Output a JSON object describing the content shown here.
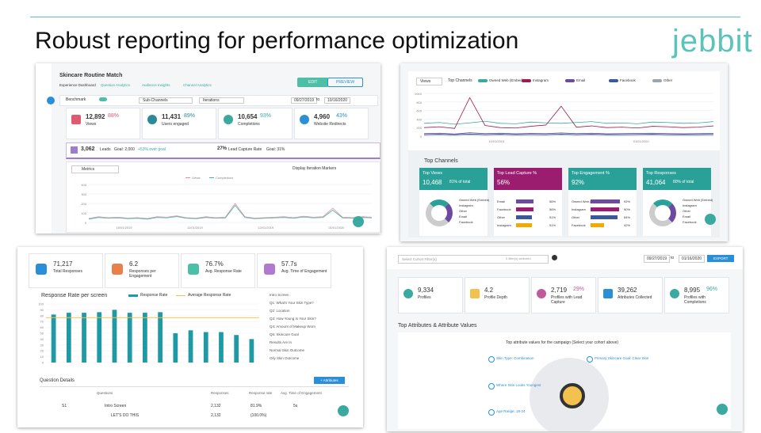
{
  "header": {
    "title": "Robust reporting for performance optimization",
    "logo": "jebbit"
  },
  "experience_dashboard": {
    "title": "Skincare Routine Match",
    "tabs": [
      "Experience Dashboard",
      "Question Analytics",
      "Audience Insights",
      "Channel Analytics"
    ],
    "buttons": [
      "EDIT",
      "PREVIEW"
    ],
    "filters": {
      "benchmark": "Benchmark",
      "channels": "Sub-Channels",
      "iterations": "Iterations",
      "start_date": "09/27/2019",
      "to": "to",
      "end_date": "10/16/2020"
    },
    "kpis": [
      {
        "value": "12,892",
        "percent": "88%",
        "label": "Views"
      },
      {
        "value": "11,431",
        "percent": "89%",
        "label": "Users engaged"
      },
      {
        "value": "10,654",
        "percent": "93%",
        "label": "Completions"
      },
      {
        "value": "4,960",
        "percent": "43%",
        "label": "Website Redirects"
      }
    ],
    "leads": {
      "value": "3,062",
      "label": "Leads",
      "goal": "Goal: 2,000",
      "delta": "+53% over goal",
      "rate": "27%",
      "rate_label": "Lead Capture Rate",
      "rate_goal": "Goal: 31%"
    },
    "metrics_dropdown": "Metrics",
    "markers_toggle": "Display Iteration Markers",
    "chart": {
      "type": "line",
      "x_labels": [
        "10/01/2019",
        "11/01/2019",
        "12/01/2019",
        "01/01/2020"
      ],
      "ylim": [
        0,
        400
      ],
      "yticks": [
        0,
        100,
        200,
        300,
        400
      ],
      "series": [
        {
          "name": "Views",
          "color": "#e88aa0",
          "values": [
            40,
            60,
            50,
            55,
            45,
            50,
            40,
            60,
            55,
            70,
            50,
            45,
            60,
            50,
            55,
            200,
            60,
            45,
            50,
            55,
            60,
            50,
            65,
            55,
            60,
            150,
            55,
            50,
            60,
            55
          ]
        },
        {
          "name": "Completions",
          "color": "#3fb6a8",
          "values": [
            35,
            52,
            44,
            48,
            40,
            44,
            35,
            52,
            48,
            62,
            44,
            40,
            52,
            44,
            48,
            180,
            52,
            40,
            44,
            48,
            52,
            44,
            57,
            48,
            52,
            130,
            48,
            44,
            52,
            48
          ]
        }
      ]
    }
  },
  "channel_analytics": {
    "metric_dropdown": "Views",
    "top_channels_label": "Top Channels",
    "chart": {
      "type": "line",
      "x_labels": [
        "10/01/2019",
        "01/01/2020"
      ],
      "ylim": [
        0,
        1000
      ],
      "yticks": [
        0,
        200,
        400,
        600,
        800,
        1000
      ],
      "series": [
        {
          "name": "Owned Web (Embed)",
          "color": "#3aa99f",
          "values": [
            300,
            320,
            280,
            310,
            350,
            300,
            290,
            330,
            310,
            300,
            320,
            340,
            300,
            310,
            290,
            330,
            320,
            300,
            310,
            340
          ]
        },
        {
          "name": "Instagram",
          "color": "#9b1d50",
          "values": [
            200,
            220,
            180,
            900,
            250,
            200,
            190,
            230,
            260,
            700,
            210,
            240,
            200,
            210,
            190,
            230,
            220,
            200,
            210,
            240
          ]
        },
        {
          "name": "Email",
          "color": "#6c4a9e",
          "values": [
            60,
            70,
            50,
            80,
            60,
            70,
            55,
            65,
            60,
            75,
            60,
            70,
            55,
            60,
            65,
            70,
            60,
            55,
            60,
            65
          ]
        },
        {
          "name": "Facebook",
          "color": "#3b5998",
          "values": [
            40,
            45,
            35,
            50,
            40,
            45,
            38,
            42,
            40,
            48,
            40,
            45,
            38,
            40,
            42,
            45,
            40,
            38,
            40,
            42
          ]
        },
        {
          "name": "Other",
          "color": "#9aa5ad",
          "values": [
            20,
            25,
            18,
            30,
            20,
            25,
            18,
            22,
            20,
            28,
            20,
            25,
            18,
            20,
            22,
            25,
            20,
            18,
            20,
            22
          ]
        }
      ]
    },
    "section_title": "Top Channels",
    "cards": [
      {
        "title": "Top Views",
        "value": "10,468",
        "share": "81% of total",
        "legend": [
          "Owned Web (Embed)",
          "Instagram",
          "Other",
          "Email",
          "Facebook"
        ]
      },
      {
        "title": "Top Lead Capture %",
        "value": "56%",
        "bars": {
          "categories": [
            "Email",
            "Facebook",
            "Other",
            "Instagram"
          ],
          "values": [
            56,
            56,
            51,
            51
          ],
          "value_labels": [
            "56%",
            "56%",
            "51%",
            "51%"
          ]
        }
      },
      {
        "title": "Top Engagement %",
        "value": "92%",
        "bars": {
          "categories": [
            "Owned Web (Embed)",
            "Instagram",
            "Other",
            "Facebook"
          ],
          "values": [
            92,
            90,
            84,
            42
          ],
          "value_labels": [
            "92%",
            "90%",
            "84%",
            "42%"
          ]
        }
      },
      {
        "title": "Top Responses",
        "value": "41,064",
        "share": "80% of total",
        "legend": [
          "Owned Web (Embed)",
          "Instagram",
          "Other",
          "Email",
          "Facebook"
        ]
      }
    ]
  },
  "response_analytics": {
    "kpis": [
      {
        "value": "71,217",
        "label": "Total Responses"
      },
      {
        "value": "6.2",
        "label": "Responses per Engagement"
      },
      {
        "value": "76.7%",
        "label": "Avg. Response Rate"
      },
      {
        "value": "57.7s",
        "label": "Avg. Time of Engagement"
      }
    ],
    "chart": {
      "type": "bar",
      "title": "Response Rate per screen",
      "categories": [
        null,
        null,
        null,
        null,
        null,
        null,
        null,
        null,
        null,
        null,
        null,
        null,
        null,
        null
      ],
      "series": [
        {
          "name": "Response Rate",
          "color": "#1f9aa5",
          "values": [
            82,
            85,
            85,
            86,
            90,
            85,
            85,
            86,
            50,
            55,
            52,
            52,
            47,
            40
          ]
        }
      ],
      "average": {
        "name": "Average Response Rate",
        "color": "#f2c14e",
        "value": 76.7
      },
      "ylim": [
        0,
        100
      ],
      "yticks": [
        0,
        10,
        20,
        30,
        40,
        50,
        60,
        70,
        80,
        90,
        100
      ]
    },
    "screens": [
      "Intro Screen",
      "Q1: What's Your Skin Type?",
      "Q2: Location",
      "Q3: How Young Is Your Skin?",
      "Q4: Amount of Makeup Worn",
      "Q5: Skincare Goal",
      "Results Are In",
      "Normal Skin Outcome",
      "Oily Skin Outcome"
    ],
    "table": {
      "title": "Question Details",
      "button": "+ Attributes",
      "headers": [
        "Questions",
        "Responses",
        "Response rate",
        "Avg. Time of Engagement"
      ],
      "rows": [
        [
          "S1",
          "Intro Screen",
          "2,132",
          "81.9%",
          "5s"
        ],
        [
          "",
          "LET'S DO THIS",
          "2,132",
          "(100.0%)",
          ""
        ]
      ]
    }
  },
  "audience": {
    "cohort_filter": "Select Cohort Filter(s)",
    "filters_selected": "0 filter(s) selected",
    "start_date": "09/27/2019",
    "to": "to",
    "end_date": "01/16/2020",
    "export": "EXPORT",
    "kpis": [
      {
        "value": "9,334",
        "percent": "",
        "label": "Profiles"
      },
      {
        "value": "4.2",
        "percent": "",
        "label": "Profile Depth"
      },
      {
        "value": "2,719",
        "percent": "29%",
        "label": "Profiles with Lead Capture"
      },
      {
        "value": "39,262",
        "percent": "",
        "label": "Attributes Collected"
      },
      {
        "value": "8,995",
        "percent": "96%",
        "label": "Profiles with Completions"
      }
    ],
    "section_title": "Top Attributes & Attribute Values",
    "subtitle": "Top attribute values for the campaign (Select your cohort above)",
    "attributes": [
      "Skin Type: Combination",
      "Primary Skincare Goal: Clear Skin",
      "Where Skin Looks Youngest",
      "Age Range: 18-24"
    ]
  }
}
